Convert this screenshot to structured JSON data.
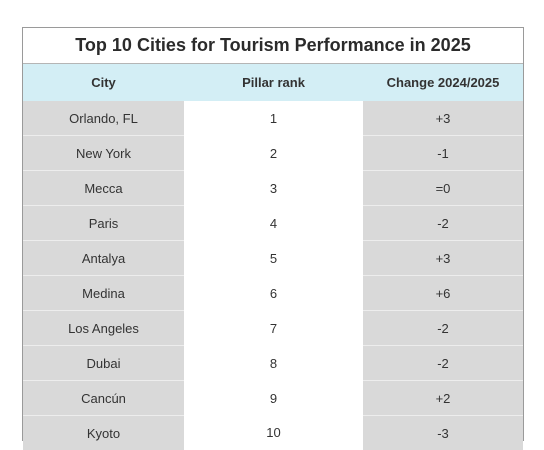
{
  "title": "Top 10 Cities for Tourism Performance in 2025",
  "headers": {
    "city": "City",
    "rank": "Pillar rank",
    "change": "Change 2024/2025"
  },
  "colors": {
    "header_bg": "#d3eef5",
    "side_column_bg": "#d9d9d9",
    "rank_column_bg": "#ffffff",
    "border": "#9a9a9a"
  },
  "chart_data": {
    "type": "table",
    "title": "Top 10 Cities for Tourism Performance in 2025",
    "columns": [
      "City",
      "Pillar rank",
      "Change 2024/2025"
    ],
    "rows": [
      {
        "city": "Orlando, FL",
        "rank": "1",
        "change": "+3"
      },
      {
        "city": "New York",
        "rank": "2",
        "change": "-1"
      },
      {
        "city": "Mecca",
        "rank": "3",
        "change": "=0"
      },
      {
        "city": "Paris",
        "rank": "4",
        "change": "-2"
      },
      {
        "city": "Antalya",
        "rank": "5",
        "change": "+3"
      },
      {
        "city": "Medina",
        "rank": "6",
        "change": "+6"
      },
      {
        "city": "Los Angeles",
        "rank": "7",
        "change": "-2"
      },
      {
        "city": "Dubai",
        "rank": "8",
        "change": "-2"
      },
      {
        "city": "Cancún",
        "rank": "9",
        "change": "+2"
      },
      {
        "city": "Kyoto",
        "rank": "10",
        "change": "-3"
      }
    ]
  }
}
